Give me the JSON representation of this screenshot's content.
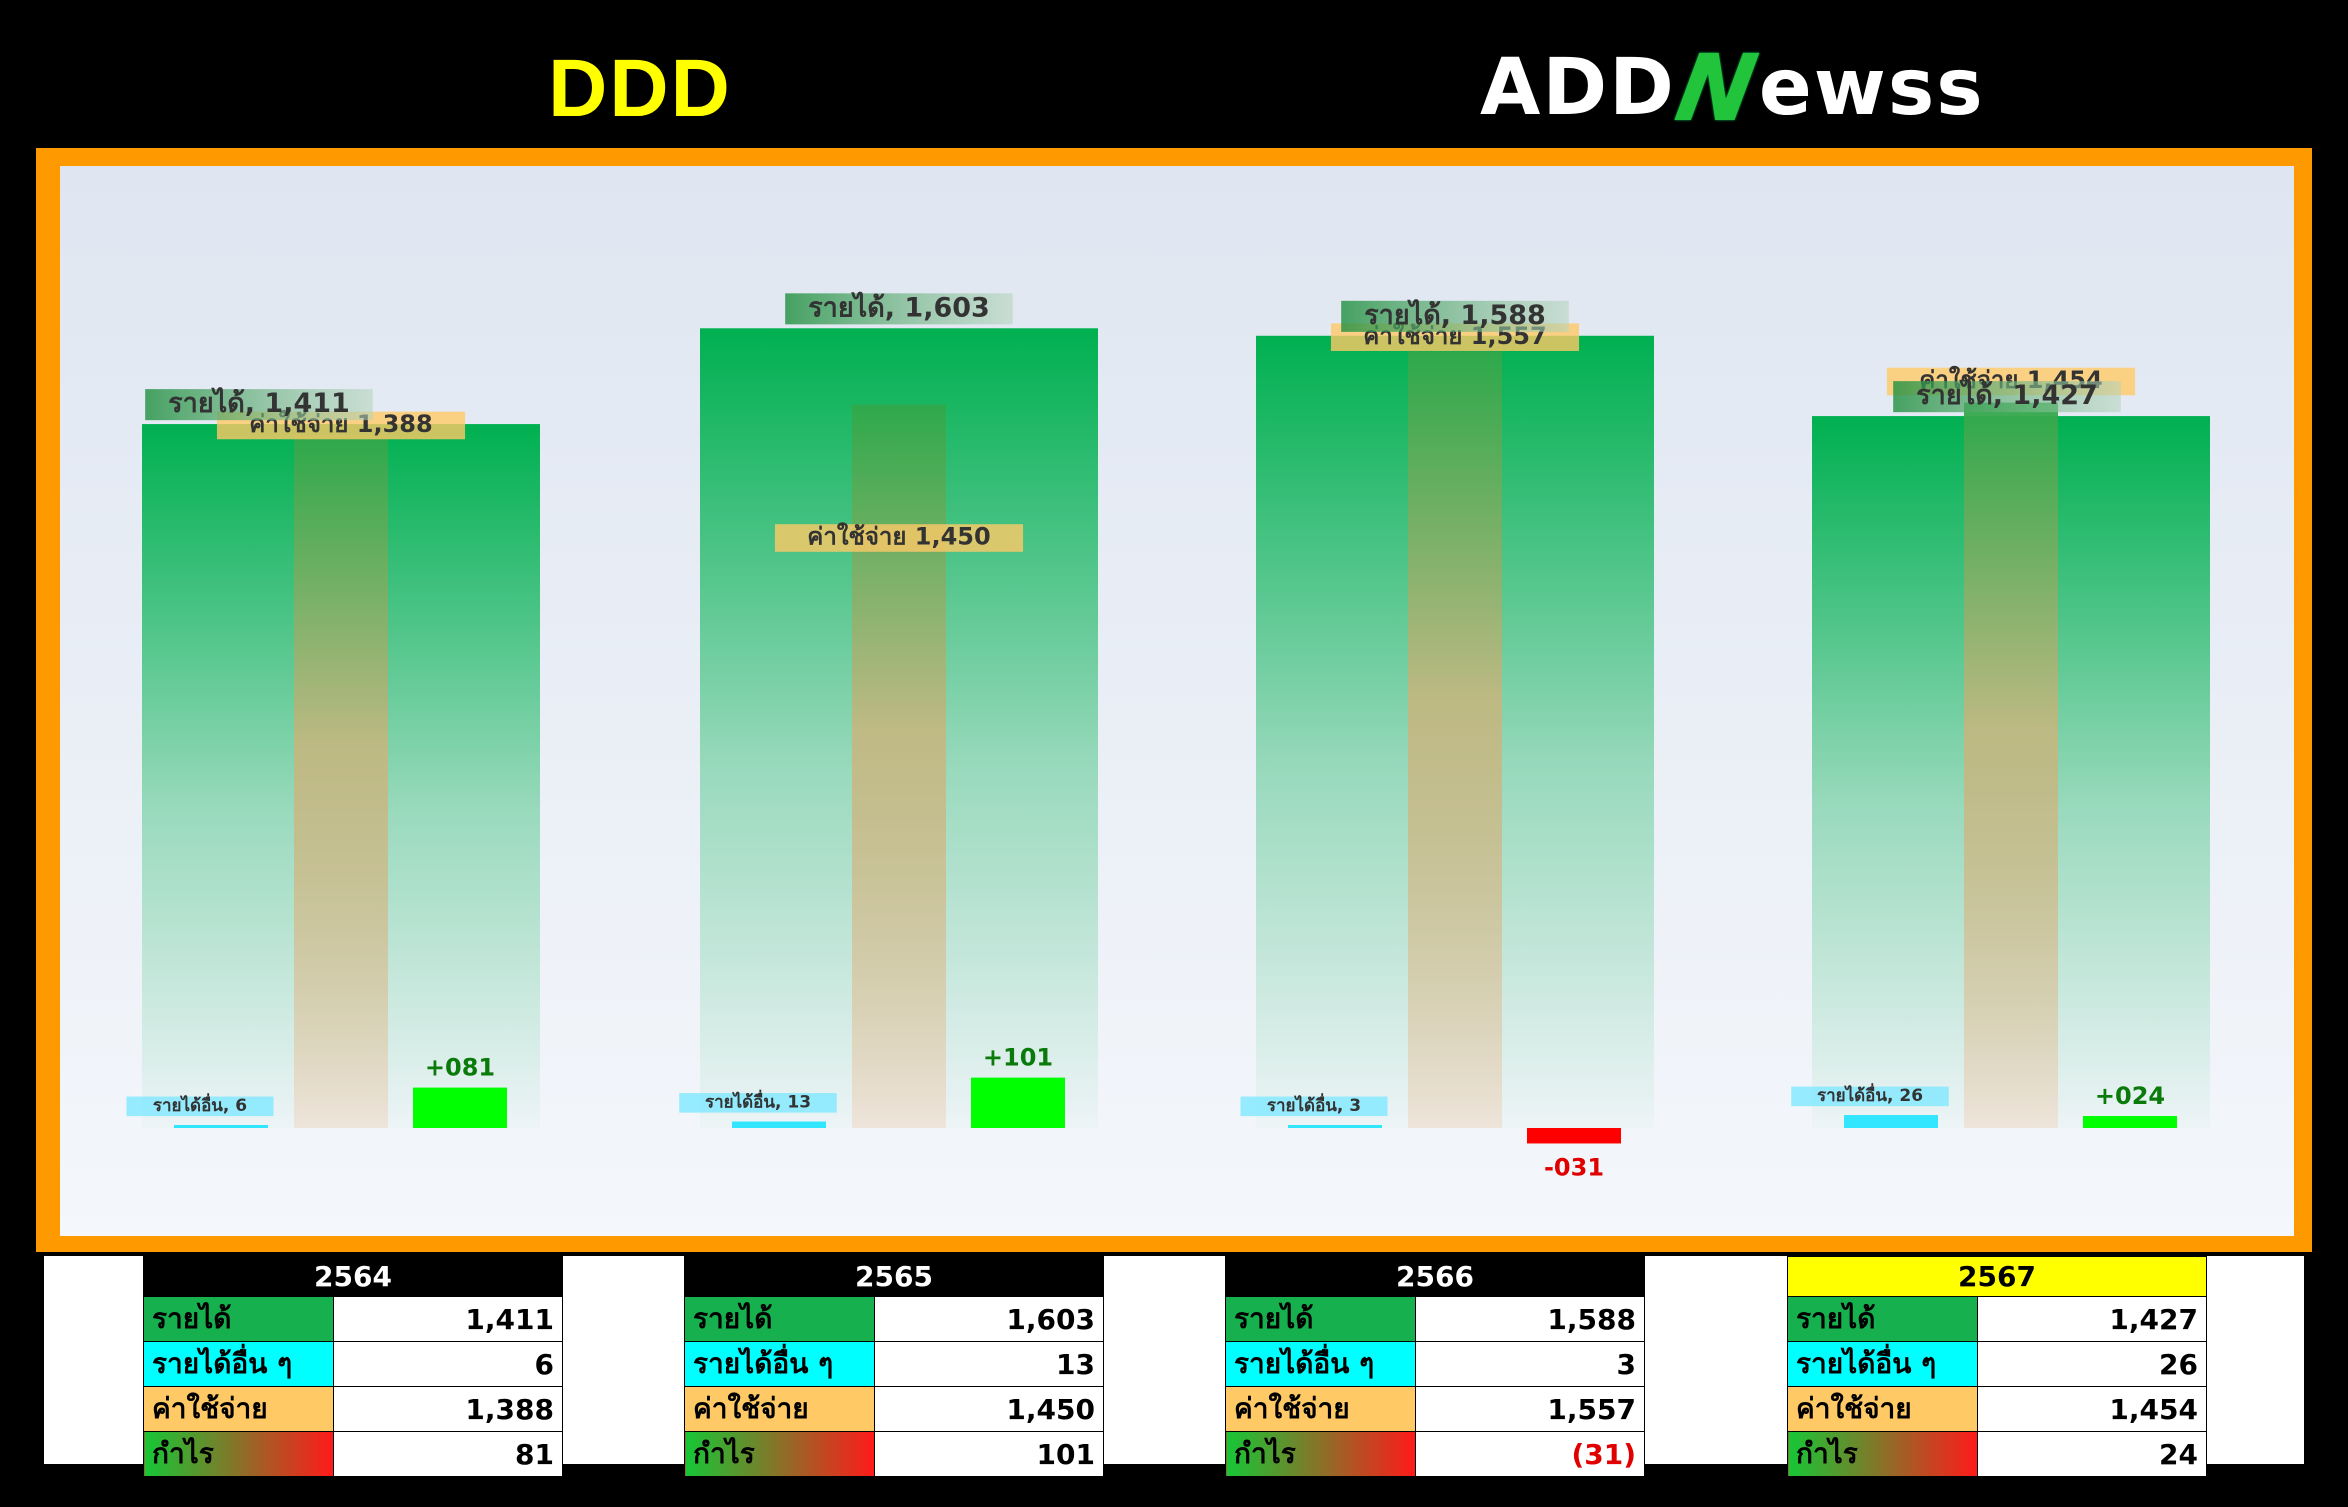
{
  "header": {
    "title": "DDD",
    "logo": {
      "pre": "ADD",
      "n": "N",
      "post": "ewss"
    }
  },
  "colors": {
    "revenue": "#00b050",
    "other_income": "#33e6ff",
    "expense": "#f2a66b",
    "profit_pos": "#00ff00",
    "profit_neg": "#ff0000",
    "frame": "#ff9900",
    "title": "#ffff00"
  },
  "chart_data": {
    "type": "bar",
    "categories": [
      "2564",
      "2565",
      "2566",
      "2567"
    ],
    "ylim": [
      -60,
      1800
    ],
    "series": [
      {
        "name": "รายได้",
        "values": [
          1411,
          1603,
          1588,
          1427
        ],
        "label_prefix": "รายได้, "
      },
      {
        "name": "รายได้อื่น ๆ",
        "values": [
          6,
          13,
          3,
          26
        ],
        "label_prefix": "รายได้อื่น, "
      },
      {
        "name": "ค่าใช้จ่าย",
        "values": [
          1388,
          1450,
          1557,
          1454
        ],
        "label_prefix": "ค่าใช้จ่าย "
      },
      {
        "name": "กำไร",
        "values": [
          81,
          101,
          -31,
          24
        ]
      }
    ],
    "profit_labels": [
      "+081",
      "+101",
      "-031",
      "+024"
    ],
    "grid": false,
    "legend": "none"
  },
  "tables": [
    {
      "year": "2564",
      "highlight": false,
      "rows": [
        {
          "label": "รายได้",
          "value": "1,411"
        },
        {
          "label": "รายได้อื่น ๆ",
          "value": "6"
        },
        {
          "label": "ค่าใช้จ่าย",
          "value": "1,388"
        },
        {
          "label": "กำไร",
          "value": "81"
        }
      ]
    },
    {
      "year": "2565",
      "highlight": false,
      "rows": [
        {
          "label": "รายได้",
          "value": "1,603"
        },
        {
          "label": "รายได้อื่น ๆ",
          "value": "13"
        },
        {
          "label": "ค่าใช้จ่าย",
          "value": "1,450"
        },
        {
          "label": "กำไร",
          "value": "101"
        }
      ]
    },
    {
      "year": "2566",
      "highlight": false,
      "rows": [
        {
          "label": "รายได้",
          "value": "1,588"
        },
        {
          "label": "รายได้อื่น ๆ",
          "value": "3"
        },
        {
          "label": "ค่าใช้จ่าย",
          "value": "1,557"
        },
        {
          "label": "กำไร",
          "value": "(31)",
          "negative": true
        }
      ]
    },
    {
      "year": "2567",
      "highlight": true,
      "rows": [
        {
          "label": "รายได้",
          "value": "1,427"
        },
        {
          "label": "รายได้อื่น ๆ",
          "value": "26"
        },
        {
          "label": "ค่าใช้จ่าย",
          "value": "1,454"
        },
        {
          "label": "กำไร",
          "value": "24"
        }
      ]
    }
  ]
}
